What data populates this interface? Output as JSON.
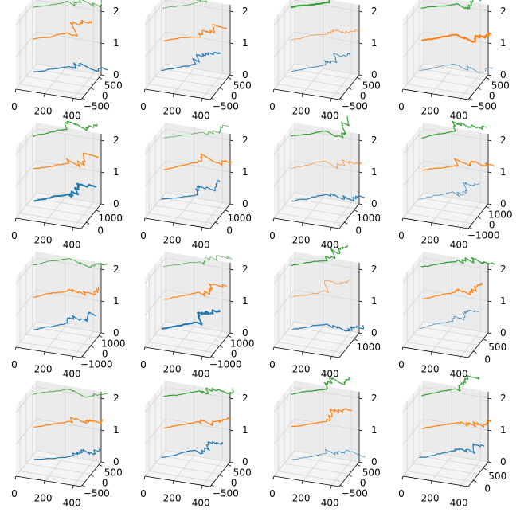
{
  "figure": {
    "rows": 4,
    "cols": 4,
    "background": "#ffffff"
  },
  "style": {
    "pane_back": "#ebebeb",
    "pane_side": "#f2f2f2",
    "pane_floor": "#f4f4f4",
    "grid": "#d4d4d4",
    "axis": "#000000",
    "colors": [
      "#1f77b4",
      "#ff7f0e",
      "#2ca02c"
    ]
  },
  "chart_data": [
    {
      "type": "line3d",
      "xticks": [
        "0",
        "200",
        "400"
      ],
      "yticks": [
        "−500",
        "0",
        "500"
      ],
      "zticks": [
        "0",
        "1",
        "2"
      ],
      "xlim": [
        0,
        450
      ],
      "ylim": [
        -800,
        800
      ],
      "zlim": [
        0,
        2
      ],
      "series": [
        {
          "z": 0,
          "seed": 1,
          "lw": 1.2
        },
        {
          "z": 1,
          "seed": 2,
          "lw": 1.2
        },
        {
          "z": 2,
          "seed": 3,
          "lw": 0.8
        }
      ]
    },
    {
      "type": "line3d",
      "xticks": [
        "0",
        "200",
        "400"
      ],
      "yticks": [
        "−500",
        "0",
        "500"
      ],
      "zticks": [
        "0",
        "1",
        "2"
      ],
      "xlim": [
        0,
        450
      ],
      "ylim": [
        -800,
        800
      ],
      "zlim": [
        0,
        2
      ],
      "series": [
        {
          "z": 0,
          "seed": 4,
          "lw": 1.2
        },
        {
          "z": 1,
          "seed": 5,
          "lw": 1.2
        },
        {
          "z": 2,
          "seed": 6,
          "lw": 0.6
        }
      ]
    },
    {
      "type": "line3d",
      "xticks": [
        "0",
        "200",
        "400"
      ],
      "yticks": [
        "−500",
        "0",
        "500"
      ],
      "zticks": [
        "0",
        "1",
        "2"
      ],
      "xlim": [
        0,
        450
      ],
      "ylim": [
        -800,
        800
      ],
      "zlim": [
        0,
        2
      ],
      "series": [
        {
          "z": 0,
          "seed": 7,
          "lw": 0.8
        },
        {
          "z": 1,
          "seed": 8,
          "lw": 0.6
        },
        {
          "z": 2,
          "seed": 9,
          "lw": 2.0
        }
      ]
    },
    {
      "type": "line3d",
      "xticks": [
        "0",
        "200",
        "400"
      ],
      "yticks": [
        "−500",
        "0",
        "500"
      ],
      "zticks": [
        "0",
        "1",
        "2"
      ],
      "xlim": [
        0,
        450
      ],
      "ylim": [
        -800,
        800
      ],
      "zlim": [
        0,
        2
      ],
      "series": [
        {
          "z": 0,
          "seed": 10,
          "lw": 0.6
        },
        {
          "z": 1,
          "seed": 11,
          "lw": 2.0
        },
        {
          "z": 2,
          "seed": 12,
          "lw": 1.2
        }
      ]
    },
    {
      "type": "line3d",
      "xticks": [
        "0",
        "200",
        "400"
      ],
      "yticks": [
        "0",
        "1000"
      ],
      "zticks": [
        "0",
        "1",
        "2"
      ],
      "xlim": [
        0,
        450
      ],
      "ylim": [
        -800,
        1400
      ],
      "zlim": [
        0,
        2
      ],
      "series": [
        {
          "z": 0,
          "seed": 13,
          "lw": 2.0
        },
        {
          "z": 1,
          "seed": 14,
          "lw": 1.2
        },
        {
          "z": 2,
          "seed": 15,
          "lw": 1.2
        }
      ]
    },
    {
      "type": "line3d",
      "xticks": [
        "0",
        "200",
        "400"
      ],
      "yticks": [
        "0",
        "1000"
      ],
      "zticks": [
        "0",
        "1",
        "2"
      ],
      "xlim": [
        0,
        450
      ],
      "ylim": [
        -800,
        1400
      ],
      "zlim": [
        0,
        2
      ],
      "series": [
        {
          "z": 0,
          "seed": 16,
          "lw": 1.2
        },
        {
          "z": 1,
          "seed": 17,
          "lw": 1.2
        },
        {
          "z": 2,
          "seed": 18,
          "lw": 0.6
        }
      ]
    },
    {
      "type": "line3d",
      "xticks": [
        "0",
        "200",
        "400"
      ],
      "yticks": [
        "0",
        "1000"
      ],
      "zticks": [
        "0",
        "1",
        "2"
      ],
      "xlim": [
        0,
        450
      ],
      "ylim": [
        -800,
        1400
      ],
      "zlim": [
        0,
        2
      ],
      "series": [
        {
          "z": 0,
          "seed": 19,
          "lw": 1.2
        },
        {
          "z": 1,
          "seed": 20,
          "lw": 0.6
        },
        {
          "z": 2,
          "seed": 21,
          "lw": 1.2
        }
      ]
    },
    {
      "type": "line3d",
      "xticks": [
        "0",
        "200",
        "400"
      ],
      "yticks": [
        "−1000",
        "0",
        "1000"
      ],
      "zticks": [
        "0",
        "1",
        "2"
      ],
      "xlim": [
        0,
        450
      ],
      "ylim": [
        -1300,
        1300
      ],
      "zlim": [
        0,
        2
      ],
      "series": [
        {
          "z": 0,
          "seed": 22,
          "lw": 0.6
        },
        {
          "z": 1,
          "seed": 23,
          "lw": 1.2
        },
        {
          "z": 2,
          "seed": 24,
          "lw": 1.2
        }
      ]
    },
    {
      "type": "line3d",
      "xticks": [
        "0",
        "200",
        "400"
      ],
      "yticks": [
        "−1000",
        "0",
        "1000"
      ],
      "zticks": [
        "0",
        "1",
        "2"
      ],
      "xlim": [
        0,
        450
      ],
      "ylim": [
        -1300,
        1300
      ],
      "zlim": [
        0,
        2
      ],
      "series": [
        {
          "z": 0,
          "seed": 25,
          "lw": 1.2
        },
        {
          "z": 1,
          "seed": 26,
          "lw": 1.2
        },
        {
          "z": 2,
          "seed": 27,
          "lw": 0.8
        }
      ]
    },
    {
      "type": "line3d",
      "xticks": [
        "0",
        "200",
        "400"
      ],
      "yticks": [
        "−1000",
        "0",
        "1000"
      ],
      "zticks": [
        "0",
        "1",
        "2"
      ],
      "xlim": [
        0,
        450
      ],
      "ylim": [
        -1300,
        1300
      ],
      "zlim": [
        0,
        2
      ],
      "series": [
        {
          "z": 0,
          "seed": 28,
          "lw": 2.0
        },
        {
          "z": 1,
          "seed": 29,
          "lw": 1.2
        },
        {
          "z": 2,
          "seed": 30,
          "lw": 0.6
        }
      ]
    },
    {
      "type": "line3d",
      "xticks": [
        "0",
        "200",
        "400"
      ],
      "yticks": [
        "1000"
      ],
      "zticks": [
        "0",
        "1",
        "2"
      ],
      "xlim": [
        0,
        450
      ],
      "ylim": [
        -800,
        1400
      ],
      "zlim": [
        0,
        2
      ],
      "series": [
        {
          "z": 0,
          "seed": 31,
          "lw": 1.2
        },
        {
          "z": 1,
          "seed": 32,
          "lw": 0.6
        },
        {
          "z": 2,
          "seed": 33,
          "lw": 1.2
        }
      ]
    },
    {
      "type": "line3d",
      "xticks": [
        "0",
        "200",
        "400"
      ],
      "yticks": [
        "0",
        "500"
      ],
      "zticks": [
        "0",
        "1",
        "2"
      ],
      "xlim": [
        0,
        450
      ],
      "ylim": [
        -600,
        800
      ],
      "zlim": [
        0,
        2
      ],
      "series": [
        {
          "z": 0,
          "seed": 34,
          "lw": 0.6
        },
        {
          "z": 1,
          "seed": 35,
          "lw": 1.2
        },
        {
          "z": 2,
          "seed": 36,
          "lw": 1.2
        }
      ]
    },
    {
      "type": "line3d",
      "xticks": [
        "0",
        "200",
        "400"
      ],
      "yticks": [
        "−500",
        "0",
        "500"
      ],
      "zticks": [
        "0",
        "1",
        "2"
      ],
      "xlim": [
        0,
        450
      ],
      "ylim": [
        -800,
        800
      ],
      "zlim": [
        0,
        2
      ],
      "series": [
        {
          "z": 0,
          "seed": 37,
          "lw": 1.2
        },
        {
          "z": 1,
          "seed": 38,
          "lw": 1.2
        },
        {
          "z": 2,
          "seed": 39,
          "lw": 0.8
        }
      ]
    },
    {
      "type": "line3d",
      "xticks": [
        "0",
        "200",
        "400"
      ],
      "yticks": [
        "−500",
        "0",
        "500"
      ],
      "zticks": [
        "0",
        "1",
        "2"
      ],
      "xlim": [
        0,
        450
      ],
      "ylim": [
        -800,
        800
      ],
      "zlim": [
        0,
        2
      ],
      "series": [
        {
          "z": 0,
          "seed": 40,
          "lw": 1.2
        },
        {
          "z": 1,
          "seed": 41,
          "lw": 1.2
        },
        {
          "z": 2,
          "seed": 42,
          "lw": 1.2
        }
      ]
    },
    {
      "type": "line3d",
      "xticks": [
        "0",
        "200",
        "400"
      ],
      "yticks": [
        "−500",
        "0",
        "500"
      ],
      "zticks": [
        "0",
        "1",
        "2"
      ],
      "xlim": [
        0,
        450
      ],
      "ylim": [
        -800,
        800
      ],
      "zlim": [
        0,
        2
      ],
      "series": [
        {
          "z": 0,
          "seed": 43,
          "lw": 0.6
        },
        {
          "z": 1,
          "seed": 44,
          "lw": 1.2
        },
        {
          "z": 2,
          "seed": 45,
          "lw": 1.2
        }
      ]
    },
    {
      "type": "line3d",
      "xticks": [
        "0",
        "200",
        "400"
      ],
      "yticks": [
        "0",
        "500"
      ],
      "zticks": [
        "0",
        "1",
        "2"
      ],
      "xlim": [
        0,
        450
      ],
      "ylim": [
        -600,
        800
      ],
      "zlim": [
        0,
        2
      ],
      "series": [
        {
          "z": 0,
          "seed": 46,
          "lw": 1.2
        },
        {
          "z": 1,
          "seed": 47,
          "lw": 1.2
        },
        {
          "z": 2,
          "seed": 48,
          "lw": 1.2
        }
      ]
    }
  ]
}
